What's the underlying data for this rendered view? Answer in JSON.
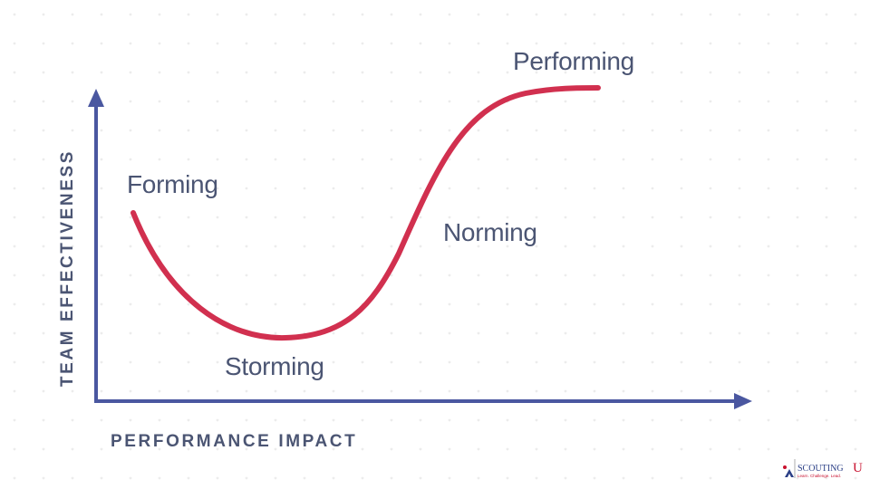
{
  "y_axis_label": "TEAM EFFECTIVENESS",
  "x_axis_label": "PERFORMANCE IMPACT",
  "stages": [
    {
      "label": "Forming"
    },
    {
      "label": "Storming"
    },
    {
      "label": "Norming"
    },
    {
      "label": "Performing"
    }
  ],
  "logo": {
    "brand": "SCOUTING",
    "letter": "U",
    "tagline": "Learn. Challenge. Lead."
  }
}
